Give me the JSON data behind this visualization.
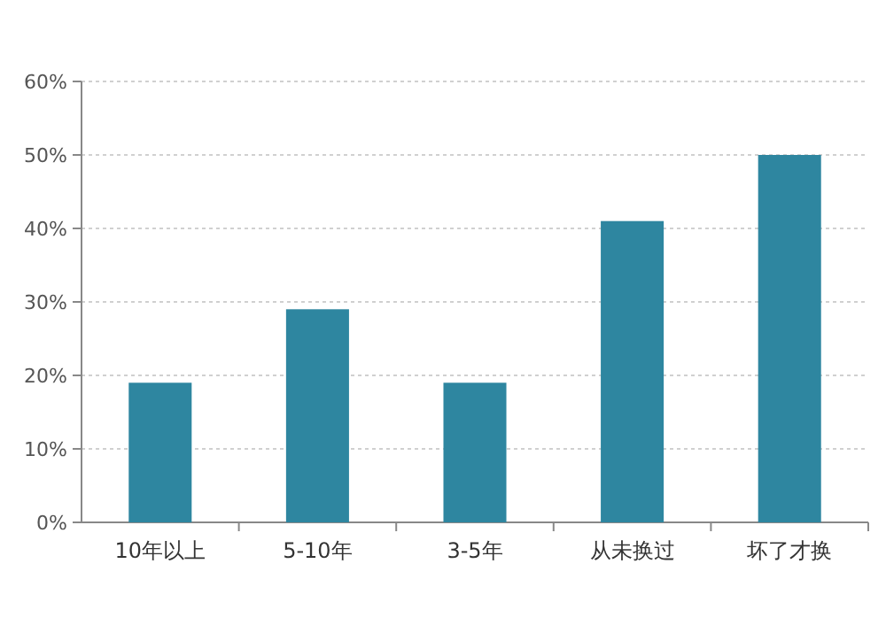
{
  "chart_data": {
    "type": "bar",
    "categories": [
      "10年以上",
      "5-10年",
      "3-5年",
      "从未换过",
      "坏了才换"
    ],
    "values": [
      19,
      29,
      19,
      41,
      50
    ],
    "color": "#2e86a0",
    "ylim": [
      0,
      60
    ],
    "yticks": [
      {
        "value": 0,
        "label": "0%"
      },
      {
        "value": 10,
        "label": "10%"
      },
      {
        "value": 20,
        "label": "20%"
      },
      {
        "value": 30,
        "label": "30%"
      },
      {
        "value": 40,
        "label": "40%"
      },
      {
        "value": 50,
        "label": "50%"
      },
      {
        "value": 60,
        "label": "60%"
      }
    ],
    "grid": "y"
  }
}
